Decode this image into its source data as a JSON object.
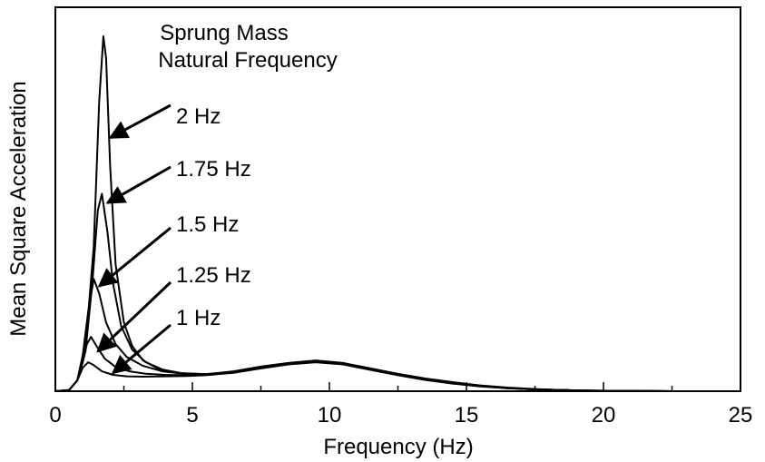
{
  "chart_data": {
    "type": "line",
    "title": "",
    "xlabel": "Frequency (Hz)",
    "ylabel": "Mean Square Acceleration",
    "xlim": [
      0,
      25
    ],
    "ylim": [
      0,
      1
    ],
    "x_ticks": [
      0,
      5,
      10,
      15,
      20,
      25
    ],
    "x_tick_labels": [
      "0",
      "5",
      "10",
      "15",
      "20",
      "25"
    ],
    "y_ticks": [],
    "grid": false,
    "legend": {
      "title_line1": "Sprung Mass",
      "title_line2": "Natural Frequency",
      "placement": "top-left, with arrows pointing to each peak"
    },
    "series": [
      {
        "name": "2 Hz",
        "x": [
          0,
          0.5,
          0.8,
          1.1,
          1.4,
          1.6,
          1.75,
          1.85,
          2.0,
          2.2,
          2.5,
          2.8,
          3.2,
          3.8,
          4.5,
          5.5,
          6.5,
          7.5,
          8.5,
          9.5,
          10.5,
          11.5,
          12.5,
          13.5,
          14.5,
          15.5,
          16.5,
          17.5,
          18.5,
          19.5,
          20.5,
          21.5,
          22.5
        ],
        "y": [
          0,
          0.003,
          0.03,
          0.12,
          0.4,
          0.8,
          0.98,
          0.92,
          0.62,
          0.35,
          0.19,
          0.125,
          0.085,
          0.06,
          0.05,
          0.047,
          0.055,
          0.068,
          0.078,
          0.085,
          0.078,
          0.063,
          0.048,
          0.035,
          0.025,
          0.016,
          0.01,
          0.006,
          0.003,
          0.0015,
          0.001,
          0.0005,
          0
        ]
      },
      {
        "name": "1.75 Hz",
        "x": [
          0,
          0.5,
          0.8,
          1.1,
          1.35,
          1.55,
          1.7,
          1.9,
          2.1,
          2.4,
          2.8,
          3.3,
          3.9,
          4.6,
          5.5,
          6.5,
          7.5,
          8.5,
          9.5,
          10.5,
          11.5,
          12.5,
          13.5,
          14.5,
          15.5,
          16.5,
          17.5,
          18.5,
          19.5,
          20.5,
          21.5,
          22.5
        ],
        "y": [
          0,
          0.003,
          0.03,
          0.11,
          0.3,
          0.5,
          0.545,
          0.44,
          0.3,
          0.18,
          0.115,
          0.08,
          0.06,
          0.05,
          0.047,
          0.054,
          0.066,
          0.077,
          0.083,
          0.077,
          0.062,
          0.047,
          0.034,
          0.024,
          0.015,
          0.009,
          0.005,
          0.003,
          0.0015,
          0.001,
          0.0005,
          0
        ]
      },
      {
        "name": "1.5 Hz",
        "x": [
          0,
          0.5,
          0.8,
          1.0,
          1.2,
          1.4,
          1.6,
          1.85,
          2.2,
          2.6,
          3.2,
          3.9,
          4.7,
          5.5,
          6.5,
          7.5,
          8.5,
          9.5,
          10.5,
          11.5,
          12.5,
          13.5,
          14.5,
          15.5,
          16.5,
          17.5,
          18.5,
          19.5,
          20.5,
          21.5,
          22.5
        ],
        "y": [
          0,
          0.003,
          0.03,
          0.1,
          0.22,
          0.31,
          0.27,
          0.19,
          0.13,
          0.095,
          0.07,
          0.055,
          0.048,
          0.046,
          0.053,
          0.065,
          0.076,
          0.082,
          0.076,
          0.061,
          0.046,
          0.033,
          0.023,
          0.015,
          0.009,
          0.005,
          0.003,
          0.0015,
          0.001,
          0.0005,
          0
        ]
      },
      {
        "name": "1.25 Hz",
        "x": [
          0,
          0.5,
          0.8,
          1.0,
          1.15,
          1.3,
          1.5,
          1.8,
          2.2,
          2.7,
          3.3,
          4.0,
          4.8,
          5.5,
          6.5,
          7.5,
          8.5,
          9.5,
          10.5,
          11.5,
          12.5,
          13.5,
          14.5,
          15.5,
          16.5,
          17.5,
          18.5,
          19.5,
          20.5,
          21.5,
          22.5
        ],
        "y": [
          0,
          0.003,
          0.03,
          0.08,
          0.13,
          0.15,
          0.125,
          0.09,
          0.067,
          0.055,
          0.048,
          0.045,
          0.044,
          0.045,
          0.052,
          0.064,
          0.075,
          0.081,
          0.075,
          0.06,
          0.045,
          0.032,
          0.022,
          0.014,
          0.008,
          0.005,
          0.003,
          0.0015,
          0.001,
          0.0005,
          0
        ]
      },
      {
        "name": "1 Hz",
        "x": [
          0,
          0.5,
          0.8,
          1.0,
          1.2,
          1.4,
          1.7,
          2.1,
          2.6,
          3.2,
          4.0,
          4.8,
          5.5,
          6.5,
          7.5,
          8.5,
          9.5,
          10.5,
          11.5,
          12.5,
          13.5,
          14.5,
          15.5,
          16.5,
          17.5,
          18.5,
          19.5,
          20.5,
          21.5,
          22.5
        ],
        "y": [
          0,
          0.003,
          0.03,
          0.065,
          0.08,
          0.072,
          0.055,
          0.045,
          0.041,
          0.04,
          0.041,
          0.042,
          0.044,
          0.051,
          0.063,
          0.074,
          0.08,
          0.074,
          0.059,
          0.044,
          0.031,
          0.021,
          0.013,
          0.008,
          0.005,
          0.003,
          0.0015,
          0.001,
          0.0005,
          0
        ]
      }
    ],
    "annotations": [
      {
        "series": "2 Hz",
        "text": "2 Hz",
        "point_to": [
          2.0,
          0.7
        ]
      },
      {
        "series": "1.75 Hz",
        "text": "1.75 Hz",
        "point_to": [
          1.9,
          0.52
        ]
      },
      {
        "series": "1.5 Hz",
        "text": "1.5 Hz",
        "point_to": [
          1.6,
          0.29
        ]
      },
      {
        "series": "1.25 Hz",
        "text": "1.25 Hz",
        "point_to": [
          1.55,
          0.11
        ]
      },
      {
        "series": "1 Hz",
        "text": "1 Hz",
        "point_to": [
          2.1,
          0.05
        ]
      }
    ]
  }
}
